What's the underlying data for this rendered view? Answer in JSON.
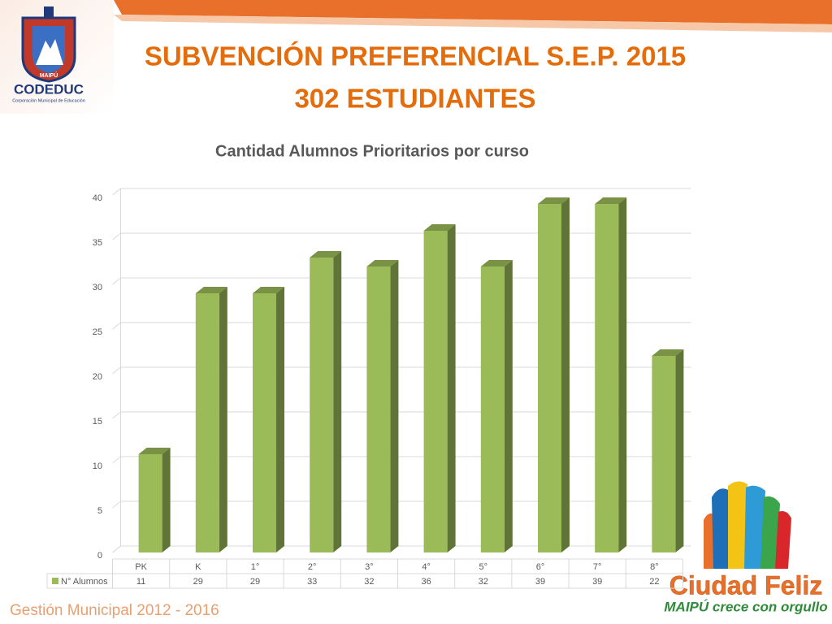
{
  "slide": {
    "title_line1": "SUBVENCIÓN PREFERENCIAL S.E.P. 2015",
    "title_line2": "302 ESTUDIANTES",
    "logo_text": "CODEDUC",
    "logo_subtext": "Corporación Municipal de Educación",
    "crest_text": "MAIPÚ",
    "brand": "Ciudad Feliz",
    "brand_slogan": "MAIPÚ crece con orgullo",
    "footer": "Gestión Municipal 2012 - 2016"
  },
  "chart_data": {
    "type": "bar",
    "title": "Cantidad Alumnos Prioritarios por curso",
    "categories": [
      "PK",
      "K",
      "1°",
      "2°",
      "3°",
      "4°",
      "5°",
      "6°",
      "7°",
      "8°"
    ],
    "series": [
      {
        "name": "N° Alumnos",
        "color": "#9bbb59",
        "values": [
          11,
          29,
          29,
          33,
          32,
          36,
          32,
          39,
          39,
          22
        ]
      }
    ],
    "ylim": [
      0,
      40
    ],
    "yticks": [
      0,
      5,
      10,
      15,
      20,
      25,
      30,
      35,
      40
    ],
    "grid": true
  }
}
